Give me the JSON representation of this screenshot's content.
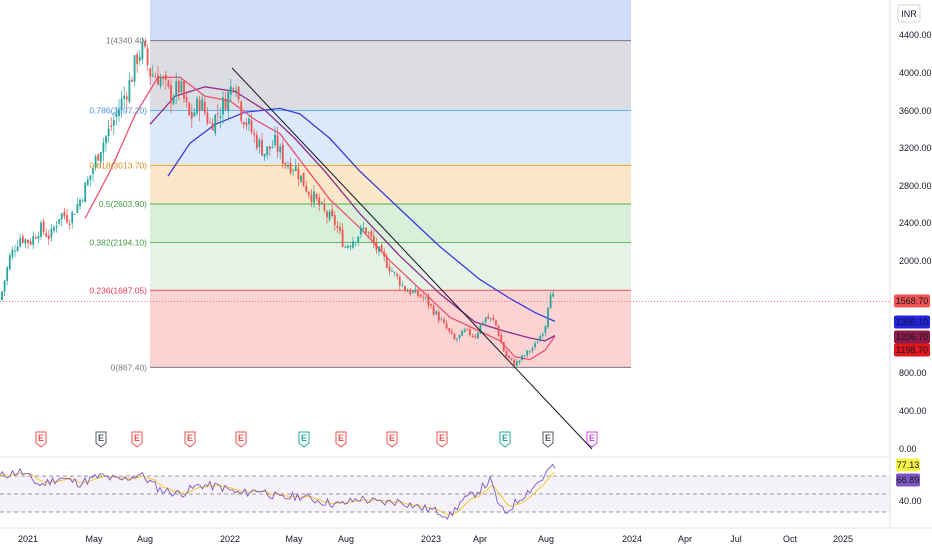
{
  "currency_label": "INR",
  "colors": {
    "up": "#26a69a",
    "down": "#ef5350",
    "ma_blue": "#3b3bd9",
    "ma_purple": "#8e2d8e",
    "ma_red": "#f0506e",
    "rsi_line": "#7e57c2",
    "rsi_signal": "#f5c518"
  },
  "price_axis": {
    "labels": [
      "4400.00",
      "4000.00",
      "3600.00",
      "3200.00",
      "2800.00",
      "2400.00",
      "2000.00",
      "800.00",
      "400.00",
      "0.00"
    ]
  },
  "rsi_axis": {
    "labels": [
      "40.00"
    ]
  },
  "price_tags": [
    {
      "text": "1568.70",
      "bg": "#ef5350",
      "fg": "#ffffff"
    },
    {
      "text": "1356.10",
      "bg": "#2323e0",
      "fg": "#ffffff"
    },
    {
      "text": "1206.70",
      "bg": "#8e1a4a",
      "fg": "#ffffff"
    },
    {
      "text": "1198.70",
      "bg": "#e0161c",
      "fg": "#ffffff"
    }
  ],
  "rsi_tags": [
    {
      "text": "77.13",
      "bg": "#f7f34a",
      "fg": "#131722"
    },
    {
      "text": "66.89",
      "bg": "#7e57c2",
      "fg": "#ffffff"
    }
  ],
  "time_axis": {
    "labels": [
      "2021",
      "May",
      "Aug",
      "2022",
      "May",
      "Aug",
      "2023",
      "Apr",
      "Aug",
      "2024",
      "Apr",
      "Jul",
      "Oct",
      "2025"
    ]
  },
  "fib_levels": [
    {
      "ratio": "1",
      "price": 4340.4,
      "label": "1(4340.40)",
      "line": "#787b86",
      "fill": "#dcdde2",
      "text": "#787b86"
    },
    {
      "ratio": "0.786",
      "price": 3597.2,
      "label": "0.786(3597.20)",
      "line": "#64b5f6",
      "fill": "#dbe9fb",
      "text": "#4a8fd8"
    },
    {
      "ratio": "0.618",
      "price": 3013.7,
      "label": "0.618(3013.70)",
      "line": "#f5a623",
      "fill": "#fde7c9",
      "text": "#d98e1a"
    },
    {
      "ratio": "0.5",
      "price": 2603.9,
      "label": "0.5(2603.90)",
      "line": "#4caf50",
      "fill": "#d8efd9",
      "text": "#3f9c43"
    },
    {
      "ratio": "0.382",
      "price": 2194.1,
      "label": "0.382(2194.10)",
      "line": "#66bb6a",
      "fill": "#e5f3e6",
      "text": "#3f9c43"
    },
    {
      "ratio": "0.236",
      "price": 1687.05,
      "label": "0.236(1687.05)",
      "line": "#ef5350",
      "fill": "#fbd3d3",
      "text": "#e53950"
    },
    {
      "ratio": "0",
      "price": 867.4,
      "label": "0(867.40)",
      "line": "#787b86",
      "fill": "",
      "text": "#787b86"
    }
  ],
  "earnings_badges": [
    {
      "letter": "E",
      "type": "red"
    },
    {
      "letter": "E",
      "type": "gray"
    },
    {
      "letter": "E",
      "type": "red"
    },
    {
      "letter": "E",
      "type": "red"
    },
    {
      "letter": "E",
      "type": "red"
    },
    {
      "letter": "E",
      "type": "green"
    },
    {
      "letter": "E",
      "type": "red"
    },
    {
      "letter": "E",
      "type": "red"
    },
    {
      "letter": "E",
      "type": "red"
    },
    {
      "letter": "E",
      "type": "green"
    },
    {
      "letter": "E",
      "type": "gray"
    },
    {
      "letter": "E",
      "type": "purple"
    }
  ],
  "chart_data": {
    "type": "candlestick",
    "ylim": [
      0,
      4600
    ],
    "last_price": 1568.7,
    "close_path": [
      [
        0,
        1580
      ],
      [
        10,
        2050
      ],
      [
        20,
        2250
      ],
      [
        30,
        2200
      ],
      [
        40,
        2350
      ],
      [
        50,
        2250
      ],
      [
        60,
        2500
      ],
      [
        70,
        2450
      ],
      [
        80,
        2650
      ],
      [
        90,
        2900
      ],
      [
        100,
        3200
      ],
      [
        110,
        3400
      ],
      [
        120,
        3650
      ],
      [
        130,
        3900
      ],
      [
        138,
        4200
      ],
      [
        143,
        4250
      ],
      [
        150,
        4000
      ],
      [
        160,
        3950
      ],
      [
        170,
        3750
      ],
      [
        180,
        3850
      ],
      [
        190,
        3500
      ],
      [
        200,
        3700
      ],
      [
        210,
        3450
      ],
      [
        220,
        3600
      ],
      [
        230,
        3800
      ],
      [
        235,
        4000
      ],
      [
        240,
        3600
      ],
      [
        248,
        3450
      ],
      [
        255,
        3300
      ],
      [
        265,
        3150
      ],
      [
        275,
        3250
      ],
      [
        285,
        3050
      ],
      [
        295,
        3000
      ],
      [
        305,
        2800
      ],
      [
        315,
        2650
      ],
      [
        325,
        2500
      ],
      [
        335,
        2400
      ],
      [
        345,
        2150
      ],
      [
        355,
        2250
      ],
      [
        365,
        2350
      ],
      [
        375,
        2150
      ],
      [
        385,
        2000
      ],
      [
        395,
        1850
      ],
      [
        405,
        1700
      ],
      [
        415,
        1650
      ],
      [
        425,
        1600
      ],
      [
        435,
        1450
      ],
      [
        445,
        1300
      ],
      [
        455,
        1150
      ],
      [
        465,
        1250
      ],
      [
        475,
        1200
      ],
      [
        485,
        1400
      ],
      [
        495,
        1350
      ],
      [
        505,
        1000
      ],
      [
        515,
        900
      ],
      [
        525,
        1000
      ],
      [
        535,
        1100
      ],
      [
        545,
        1300
      ],
      [
        550,
        1700
      ],
      [
        555,
        1568
      ]
    ],
    "ma_blue": [
      [
        168,
        2900
      ],
      [
        190,
        3250
      ],
      [
        215,
        3450
      ],
      [
        245,
        3580
      ],
      [
        280,
        3620
      ],
      [
        300,
        3560
      ],
      [
        330,
        3300
      ],
      [
        360,
        2950
      ],
      [
        400,
        2550
      ],
      [
        440,
        2150
      ],
      [
        480,
        1800
      ],
      [
        510,
        1600
      ],
      [
        535,
        1450
      ],
      [
        555,
        1356
      ]
    ],
    "ma_purple": [
      [
        150,
        3450
      ],
      [
        175,
        3750
      ],
      [
        205,
        3850
      ],
      [
        235,
        3800
      ],
      [
        265,
        3600
      ],
      [
        295,
        3300
      ],
      [
        325,
        2950
      ],
      [
        360,
        2500
      ],
      [
        400,
        2050
      ],
      [
        440,
        1650
      ],
      [
        475,
        1350
      ],
      [
        505,
        1250
      ],
      [
        530,
        1180
      ],
      [
        545,
        1150
      ],
      [
        555,
        1206
      ]
    ],
    "ma_red": [
      [
        85,
        2450
      ],
      [
        110,
        2950
      ],
      [
        135,
        3550
      ],
      [
        158,
        3950
      ],
      [
        180,
        3950
      ],
      [
        205,
        3750
      ],
      [
        230,
        3700
      ],
      [
        255,
        3500
      ],
      [
        280,
        3350
      ],
      [
        305,
        3000
      ],
      [
        330,
        2650
      ],
      [
        360,
        2350
      ],
      [
        390,
        2000
      ],
      [
        420,
        1700
      ],
      [
        450,
        1400
      ],
      [
        480,
        1250
      ],
      [
        500,
        1150
      ],
      [
        515,
        980
      ],
      [
        530,
        950
      ],
      [
        545,
        1050
      ],
      [
        555,
        1198
      ]
    ],
    "trendline": [
      [
        232,
        4050
      ],
      [
        592,
        0
      ]
    ],
    "rsi": {
      "ylim": [
        20,
        90
      ],
      "upper": 70,
      "lower": 30,
      "values": [
        [
          0,
          70
        ],
        [
          20,
          75
        ],
        [
          40,
          60
        ],
        [
          60,
          68
        ],
        [
          80,
          62
        ],
        [
          100,
          70
        ],
        [
          120,
          65
        ],
        [
          140,
          72
        ],
        [
          160,
          55
        ],
        [
          180,
          50
        ],
        [
          200,
          60
        ],
        [
          220,
          58
        ],
        [
          240,
          50
        ],
        [
          260,
          55
        ],
        [
          280,
          45
        ],
        [
          300,
          48
        ],
        [
          320,
          42
        ],
        [
          340,
          38
        ],
        [
          360,
          45
        ],
        [
          380,
          40
        ],
        [
          400,
          42
        ],
        [
          420,
          35
        ],
        [
          440,
          30
        ],
        [
          450,
          25
        ],
        [
          460,
          40
        ],
        [
          480,
          55
        ],
        [
          490,
          65
        ],
        [
          500,
          35
        ],
        [
          505,
          28
        ],
        [
          515,
          40
        ],
        [
          530,
          55
        ],
        [
          545,
          70
        ],
        [
          550,
          80
        ],
        [
          555,
          77
        ]
      ],
      "signal_last": 66.89,
      "rsi_last": 77.13
    }
  }
}
